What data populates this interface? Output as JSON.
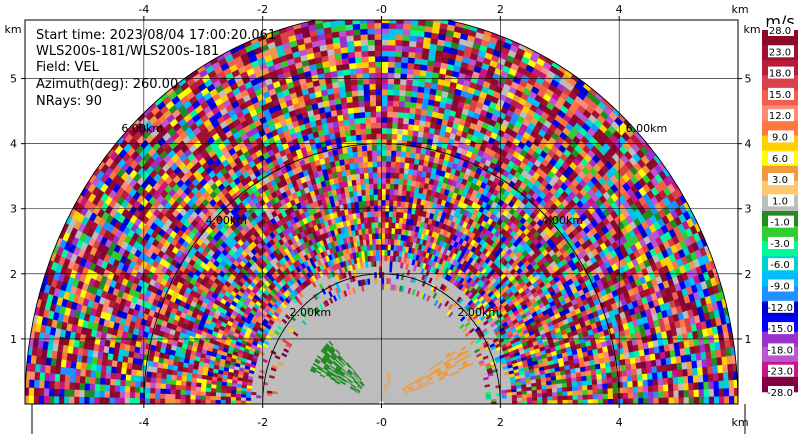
{
  "chart_data": {
    "type": "heatmap",
    "subtype": "ppi-radar-sector",
    "field": "VEL",
    "info_lines": [
      "Start time: 2023/08/04 17:00:20.061",
      "WLS200s-181/WLS200s-181",
      "Field: VEL",
      "Azimuth(deg): 260.00",
      "NRays: 90"
    ],
    "xlim": [
      -6.0,
      6.0
    ],
    "ylim": [
      0.0,
      5.9
    ],
    "x_unit": "km",
    "y_unit": "km",
    "x_ticks": [
      -4,
      -2,
      0,
      2,
      4
    ],
    "x_tick_labels": [
      "-4",
      "-2",
      "-0",
      "2",
      "4"
    ],
    "y_ticks": [
      1,
      2,
      3,
      4,
      5
    ],
    "y_tick_labels": [
      "1",
      "2",
      "3",
      "4",
      "5"
    ],
    "grid": true,
    "range_rings_km": [
      2,
      4,
      6
    ],
    "ring_labels": [
      "2.00km",
      "4.00km",
      "6.00km"
    ],
    "max_range_km": 6.0,
    "colorbar": {
      "unit": "m/s",
      "tick_labels": [
        "28.0",
        "23.0",
        "18.0",
        "15.0",
        "12.0",
        "9.0",
        "6.0",
        "3.0",
        "1.0",
        "-1.0",
        "-3.0",
        "-6.0",
        "-9.0",
        "-12.0",
        "-15.0",
        "-18.0",
        "-23.0",
        "-28.0"
      ],
      "colors": [
        "#8b0a2a",
        "#a01030",
        "#b81c3a",
        "#d9404a",
        "#f06050",
        "#ff8c7a",
        "#ff7840",
        "#ffd000",
        "#ffff00",
        "#f09a40",
        "#ffc870",
        "#bdbdbd",
        "#228b22",
        "#32cd32",
        "#00fa9a",
        "#00ced1",
        "#00bfff",
        "#1e90ff",
        "#0000cd",
        "#0000ff",
        "#9932cc",
        "#ba55d3",
        "#c71585",
        "#800040"
      ]
    }
  }
}
